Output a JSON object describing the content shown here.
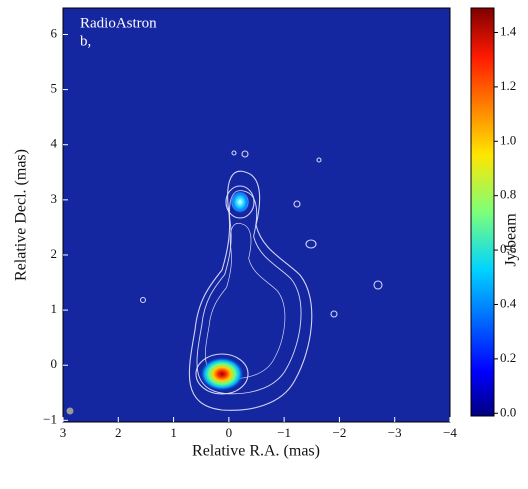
{
  "chart_data": {
    "type": "image",
    "annotation": [
      "RadioAstron",
      "b,"
    ],
    "xlabel": "Relative R.A. (mas)",
    "ylabel": "Relative Decl. (mas)",
    "xlim": [
      3,
      -4
    ],
    "xticks": [
      3,
      2,
      1,
      0,
      {
        "value": -1,
        "label": "−1"
      },
      {
        "value": -2,
        "label": "−2"
      },
      {
        "value": -3,
        "label": "−3"
      },
      {
        "value": -4,
        "label": "−4"
      }
    ],
    "ylim": [
      -1.03,
      6.48
    ],
    "yticks": [
      {
        "value": -1,
        "label": "−1"
      },
      0,
      1,
      2,
      3,
      4,
      5,
      6
    ],
    "colorbar": {
      "label": "Jy/beam",
      "lim": [
        -0.01,
        1.49
      ],
      "ticks": [
        {
          "value": 0,
          "label": "0.0"
        },
        0.2,
        0.4,
        0.6,
        0.8,
        {
          "value": 1,
          "label": "1.0"
        },
        1.2,
        1.4
      ]
    }
  }
}
